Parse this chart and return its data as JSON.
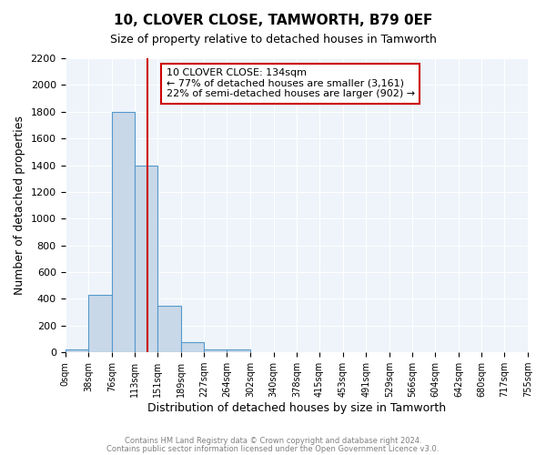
{
  "title": "10, CLOVER CLOSE, TAMWORTH, B79 0EF",
  "subtitle": "Size of property relative to detached houses in Tamworth",
  "xlabel": "Distribution of detached houses by size in Tamworth",
  "ylabel": "Number of detached properties",
  "bar_left_edges": [
    0,
    38,
    76,
    113,
    151,
    189,
    227,
    264,
    302,
    340,
    378,
    415,
    453,
    491,
    529,
    566,
    604,
    642,
    680,
    717
  ],
  "bar_heights": [
    20,
    430,
    1800,
    1400,
    350,
    75,
    25,
    25,
    0,
    0,
    0,
    0,
    0,
    0,
    0,
    0,
    0,
    0,
    0,
    0
  ],
  "bin_width": 38,
  "tick_labels": [
    "0sqm",
    "38sqm",
    "76sqm",
    "113sqm",
    "151sqm",
    "189sqm",
    "227sqm",
    "264sqm",
    "302sqm",
    "340sqm",
    "378sqm",
    "415sqm",
    "453sqm",
    "491sqm",
    "529sqm",
    "566sqm",
    "604sqm",
    "642sqm",
    "680sqm",
    "717sqm",
    "755sqm"
  ],
  "tick_positions": [
    0,
    38,
    76,
    113,
    151,
    189,
    227,
    264,
    302,
    340,
    378,
    415,
    453,
    491,
    529,
    566,
    604,
    642,
    680,
    717,
    755
  ],
  "property_line_x": 134,
  "bar_color": "#c8d8e8",
  "bar_edge_color": "#5599cc",
  "line_color": "#cc0000",
  "xlim": [
    0,
    755
  ],
  "ylim": [
    0,
    2200
  ],
  "yticks": [
    0,
    200,
    400,
    600,
    800,
    1000,
    1200,
    1400,
    1600,
    1800,
    2000,
    2200
  ],
  "annotation_title": "10 CLOVER CLOSE: 134sqm",
  "annotation_line1": "← 77% of detached houses are smaller (3,161)",
  "annotation_line2": "22% of semi-detached houses are larger (902) →",
  "bg_color": "#eef4fa",
  "footer1": "Contains HM Land Registry data © Crown copyright and database right 2024.",
  "footer2": "Contains public sector information licensed under the Open Government Licence v3.0."
}
